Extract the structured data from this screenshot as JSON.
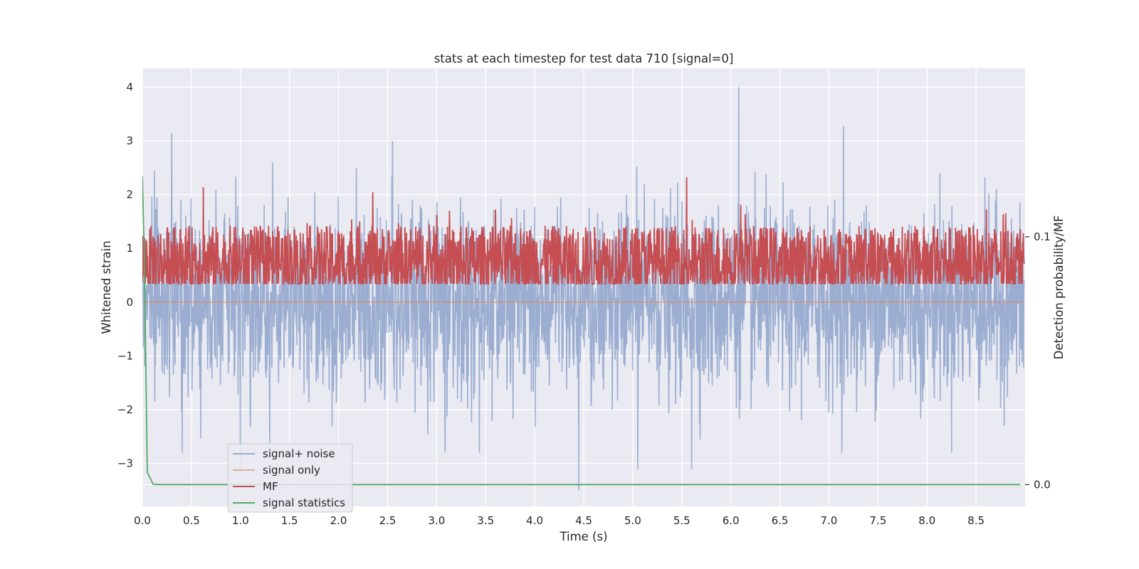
{
  "chart_data": {
    "type": "line",
    "title": "stats at each timestep for test data 710 [signal=0]",
    "xlabel": "Time (s)",
    "ylabel": "Whitened strain",
    "ylabel_right": "Detection probability/MF",
    "xlim": [
      0.0,
      9.0
    ],
    "ylim": [
      -3.8,
      4.35
    ],
    "ylim_right": [
      -0.0088,
      0.168
    ],
    "x_ticks": [
      0.0,
      0.5,
      1.0,
      1.5,
      2.0,
      2.5,
      3.0,
      3.5,
      4.0,
      4.5,
      5.0,
      5.5,
      6.0,
      6.5,
      7.0,
      7.5,
      8.0,
      8.5
    ],
    "y_ticks": [
      -3,
      -2,
      -1,
      0,
      1,
      2,
      3,
      4
    ],
    "y_right_ticks": [
      0.0,
      0.1
    ],
    "grid": true,
    "legend_position": "lower left",
    "colors": {
      "signal_noise": "#4c72b0",
      "signal_only": "#dd8452",
      "mf": "#c44e52",
      "statistics": "#55a868",
      "background": "#eaeaf2",
      "grid": "#ffffff"
    },
    "series": [
      {
        "name": "signal+ noise",
        "axis": "left",
        "description_values": {
          "baseline": 0.0,
          "typical_min": -2.0,
          "typical_max": 2.0,
          "peaks": [
            [
              0.3,
              3.15
            ],
            [
              2.55,
              3.0
            ],
            [
              6.08,
              4.0
            ],
            [
              7.15,
              3.27
            ],
            [
              4.45,
              -3.5
            ],
            [
              1.0,
              -3.2
            ],
            [
              5.6,
              -3.1
            ],
            [
              5.05,
              -3.1
            ]
          ]
        }
      },
      {
        "name": "signal only",
        "axis": "left",
        "values_constant": 0.0
      },
      {
        "name": "MF",
        "axis": "right",
        "description_values": {
          "baseline": 0.09,
          "typical_min": 0.081,
          "typical_max": 0.11,
          "peaks": [
            [
              0.62,
              0.12
            ],
            [
              2.35,
              0.118
            ],
            [
              5.55,
              0.124
            ],
            [
              6.1,
              0.113
            ]
          ]
        }
      },
      {
        "name": "signal statistics",
        "axis": "right",
        "x": [
          0.0,
          0.02,
          0.05,
          0.11,
          0.2,
          1.0,
          3.0,
          5.0,
          7.0,
          8.95
        ],
        "values": [
          0.1245,
          0.0915,
          0.005,
          0.0001,
          0.0,
          0.0,
          0.0,
          0.0,
          0.0,
          0.0
        ]
      }
    ]
  }
}
